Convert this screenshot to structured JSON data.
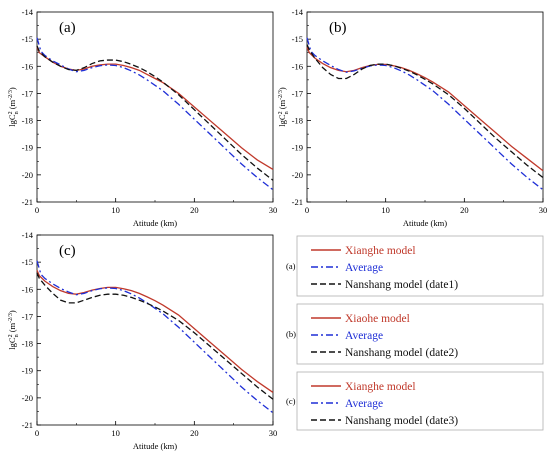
{
  "chart_data": [
    {
      "type": "line",
      "panel_label": "(a)",
      "xlabel": "Atitude  (km)",
      "ylabel_main": "lgC",
      "ylabel_sub": "n",
      "ylabel_sup": "2",
      "ylabel_unit": "(m",
      "ylabel_unit_sup": "-2/3",
      "ylabel_unit_close": ")",
      "xlim": [
        0,
        30
      ],
      "ylim": [
        -21,
        -14
      ],
      "xticks": [
        0,
        10,
        20,
        30
      ],
      "yticks": [
        -21,
        -20,
        -19,
        -18,
        -17,
        -16,
        -15,
        -14
      ],
      "grid": false,
      "series": [
        {
          "name": "Xianghe model",
          "color": "#c0392b",
          "style": "solid",
          "x": [
            0,
            0.3,
            1,
            2,
            3,
            4,
            5,
            6,
            7,
            8,
            9,
            10,
            11,
            12,
            13,
            14,
            15,
            16,
            18,
            20,
            22,
            24,
            26,
            28,
            30
          ],
          "y": [
            -15.3,
            -15.5,
            -15.65,
            -15.85,
            -16.0,
            -16.1,
            -16.15,
            -16.1,
            -16.0,
            -15.95,
            -15.92,
            -15.92,
            -15.97,
            -16.05,
            -16.15,
            -16.3,
            -16.45,
            -16.6,
            -17.0,
            -17.5,
            -18.0,
            -18.5,
            -19.0,
            -19.45,
            -19.8
          ]
        },
        {
          "name": "Average",
          "color": "#1f2fd6",
          "style": "dashdot",
          "x": [
            0,
            0.2,
            0.5,
            1,
            2,
            3,
            4,
            5,
            6,
            7,
            8,
            9,
            10,
            11,
            12,
            13,
            14,
            15,
            16,
            18,
            20,
            22,
            24,
            26,
            28,
            30
          ],
          "y": [
            -14.95,
            -15.15,
            -15.45,
            -15.6,
            -15.8,
            -15.95,
            -16.1,
            -16.2,
            -16.15,
            -16.05,
            -15.98,
            -15.95,
            -15.97,
            -16.05,
            -16.17,
            -16.32,
            -16.5,
            -16.7,
            -16.9,
            -17.4,
            -17.95,
            -18.5,
            -19.05,
            -19.6,
            -20.1,
            -20.55
          ]
        },
        {
          "name": "Nanshang model (date1)",
          "color": "#111111",
          "style": "dashed",
          "x": [
            0,
            0.3,
            1,
            2,
            3,
            4,
            5,
            6,
            7,
            8,
            9,
            10,
            11,
            12,
            13,
            14,
            15,
            16,
            18,
            20,
            22,
            24,
            26,
            28,
            30
          ],
          "y": [
            -15.25,
            -15.45,
            -15.65,
            -15.85,
            -16.0,
            -16.12,
            -16.15,
            -16.05,
            -15.9,
            -15.8,
            -15.77,
            -15.77,
            -15.83,
            -15.93,
            -16.05,
            -16.2,
            -16.38,
            -16.58,
            -17.05,
            -17.6,
            -18.15,
            -18.7,
            -19.25,
            -19.75,
            -20.2
          ]
        }
      ]
    },
    {
      "type": "line",
      "panel_label": "(b)",
      "xlabel": "Atitude  (km)",
      "ylabel_main": "lgC",
      "ylabel_sub": "n",
      "ylabel_sup": "2",
      "ylabel_unit": "(m",
      "ylabel_unit_sup": "-2/3",
      "ylabel_unit_close": ")",
      "xlim": [
        0,
        30
      ],
      "ylim": [
        -21,
        -14
      ],
      "xticks": [
        0,
        10,
        20,
        30
      ],
      "yticks": [
        -21,
        -20,
        -19,
        -18,
        -17,
        -16,
        -15,
        -14
      ],
      "grid": false,
      "series": [
        {
          "name": "Xiaohe model",
          "color": "#c0392b",
          "style": "solid",
          "x": [
            0,
            0.3,
            1,
            2,
            3,
            4,
            5,
            6,
            7,
            8,
            9,
            10,
            11,
            12,
            13,
            14,
            15,
            16,
            18,
            20,
            22,
            24,
            26,
            28,
            30
          ],
          "y": [
            -15.3,
            -15.5,
            -15.7,
            -15.9,
            -16.05,
            -16.15,
            -16.2,
            -16.15,
            -16.05,
            -15.97,
            -15.93,
            -15.93,
            -15.98,
            -16.05,
            -16.15,
            -16.28,
            -16.42,
            -16.58,
            -16.95,
            -17.45,
            -17.95,
            -18.45,
            -18.95,
            -19.4,
            -19.85
          ]
        },
        {
          "name": "Average",
          "color": "#1f2fd6",
          "style": "dashdot",
          "x": [
            0,
            0.2,
            0.5,
            1,
            2,
            3,
            4,
            5,
            6,
            7,
            8,
            9,
            10,
            11,
            12,
            13,
            14,
            15,
            16,
            18,
            20,
            22,
            24,
            26,
            28,
            30
          ],
          "y": [
            -14.95,
            -15.15,
            -15.45,
            -15.6,
            -15.8,
            -15.97,
            -16.12,
            -16.22,
            -16.17,
            -16.07,
            -15.99,
            -15.95,
            -15.97,
            -16.05,
            -16.17,
            -16.32,
            -16.5,
            -16.7,
            -16.9,
            -17.4,
            -17.95,
            -18.5,
            -19.05,
            -19.6,
            -20.1,
            -20.55
          ]
        },
        {
          "name": "Nanshang model (date2)",
          "color": "#111111",
          "style": "dashed",
          "x": [
            0,
            0.3,
            1,
            2,
            3,
            4,
            5,
            6,
            7,
            8,
            9,
            10,
            11,
            12,
            13,
            14,
            15,
            16,
            18,
            20,
            22,
            24,
            26,
            28,
            30
          ],
          "y": [
            -15.2,
            -15.4,
            -15.7,
            -16.05,
            -16.3,
            -16.45,
            -16.45,
            -16.3,
            -16.1,
            -15.97,
            -15.92,
            -15.92,
            -15.98,
            -16.07,
            -16.18,
            -16.32,
            -16.48,
            -16.65,
            -17.05,
            -17.55,
            -18.1,
            -18.65,
            -19.15,
            -19.65,
            -20.1
          ]
        }
      ]
    },
    {
      "type": "line",
      "panel_label": "(c)",
      "xlabel": "Atitude  (km)",
      "ylabel_main": "lgC",
      "ylabel_sub": "n",
      "ylabel_sup": "2",
      "ylabel_unit": "(m",
      "ylabel_unit_sup": "-2/3",
      "ylabel_unit_close": ")",
      "xlim": [
        0,
        30
      ],
      "ylim": [
        -21,
        -14
      ],
      "xticks": [
        0,
        10,
        20,
        30
      ],
      "yticks": [
        -21,
        -20,
        -19,
        -18,
        -17,
        -16,
        -15,
        -14
      ],
      "grid": false,
      "series": [
        {
          "name": "Xianghe model",
          "color": "#c0392b",
          "style": "solid",
          "x": [
            0,
            0.3,
            1,
            2,
            3,
            4,
            5,
            6,
            7,
            8,
            9,
            10,
            11,
            12,
            13,
            14,
            15,
            16,
            18,
            20,
            22,
            24,
            26,
            28,
            30
          ],
          "y": [
            -15.3,
            -15.5,
            -15.7,
            -15.9,
            -16.05,
            -16.15,
            -16.18,
            -16.12,
            -16.03,
            -15.97,
            -15.93,
            -15.93,
            -15.98,
            -16.05,
            -16.15,
            -16.28,
            -16.42,
            -16.58,
            -16.95,
            -17.45,
            -17.95,
            -18.45,
            -18.95,
            -19.4,
            -19.8
          ]
        },
        {
          "name": "Average",
          "color": "#1f2fd6",
          "style": "dashdot",
          "x": [
            0,
            0.2,
            0.5,
            1,
            2,
            3,
            4,
            5,
            6,
            7,
            8,
            9,
            10,
            11,
            12,
            13,
            14,
            15,
            16,
            18,
            20,
            22,
            24,
            26,
            28,
            30
          ],
          "y": [
            -14.95,
            -15.15,
            -15.45,
            -15.6,
            -15.8,
            -15.97,
            -16.1,
            -16.2,
            -16.15,
            -16.05,
            -15.98,
            -15.95,
            -15.97,
            -16.05,
            -16.17,
            -16.32,
            -16.5,
            -16.7,
            -16.9,
            -17.4,
            -17.95,
            -18.5,
            -19.05,
            -19.6,
            -20.1,
            -20.55
          ]
        },
        {
          "name": "Nanshang model (date3)",
          "color": "#111111",
          "style": "dashed",
          "x": [
            0,
            0.3,
            1,
            2,
            3,
            4,
            5,
            6,
            7,
            8,
            9,
            10,
            11,
            12,
            13,
            14,
            15,
            16,
            18,
            20,
            22,
            24,
            26,
            28,
            30
          ],
          "y": [
            -15.4,
            -15.6,
            -15.85,
            -16.15,
            -16.4,
            -16.5,
            -16.5,
            -16.4,
            -16.3,
            -16.22,
            -16.18,
            -16.18,
            -16.22,
            -16.3,
            -16.4,
            -16.52,
            -16.65,
            -16.8,
            -17.15,
            -17.6,
            -18.1,
            -18.6,
            -19.1,
            -19.6,
            -20.05
          ]
        }
      ]
    }
  ],
  "legend_boxes": [
    {
      "label": "(a)",
      "items": [
        {
          "text": "Xianghe model",
          "color": "#c0392b",
          "style": "solid",
          "text_color": "#c0392b"
        },
        {
          "text": "Average",
          "color": "#1f2fd6",
          "style": "dashdot",
          "text_color": "#1f2fd6"
        },
        {
          "text": "Nanshang model (date1)",
          "color": "#111111",
          "style": "dashed",
          "text_color": "#111111"
        }
      ]
    },
    {
      "label": "(b)",
      "items": [
        {
          "text": "Xiaohe model",
          "color": "#c0392b",
          "style": "solid",
          "text_color": "#c0392b"
        },
        {
          "text": "Average",
          "color": "#1f2fd6",
          "style": "dashdot",
          "text_color": "#1f2fd6"
        },
        {
          "text": "Nanshang model (date2)",
          "color": "#111111",
          "style": "dashed",
          "text_color": "#111111"
        }
      ]
    },
    {
      "label": "(c)",
      "items": [
        {
          "text": "Xianghe model",
          "color": "#c0392b",
          "style": "solid",
          "text_color": "#c0392b"
        },
        {
          "text": "Average",
          "color": "#1f2fd6",
          "style": "dashdot",
          "text_color": "#1f2fd6"
        },
        {
          "text": "Nanshang model (date3)",
          "color": "#111111",
          "style": "dashed",
          "text_color": "#111111"
        }
      ]
    }
  ]
}
